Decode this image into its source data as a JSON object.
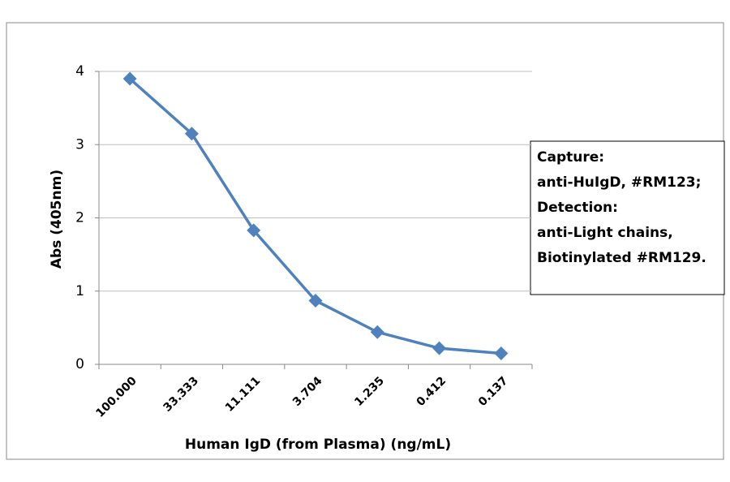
{
  "chart_data": {
    "type": "line",
    "x_label": "Human IgD (from Plasma) (ng/mL)",
    "y_label": "Abs (405nm)",
    "categories": [
      "100.000",
      "33.333",
      "11.111",
      "3.704",
      "1.235",
      "0.412",
      "0.137"
    ],
    "series": [
      {
        "color": "#4f81bd",
        "values": [
          3.9,
          3.15,
          1.83,
          0.87,
          0.44,
          0.22,
          0.15
        ]
      }
    ],
    "ylim": [
      0,
      4
    ],
    "yticks": [
      0,
      1,
      2,
      3,
      4
    ],
    "grid": true,
    "annotation": [
      "Capture:",
      "anti-HuIgD, #RM123;",
      "Detection:",
      "anti-Light chains,",
      "Biotinylated #RM129."
    ]
  }
}
